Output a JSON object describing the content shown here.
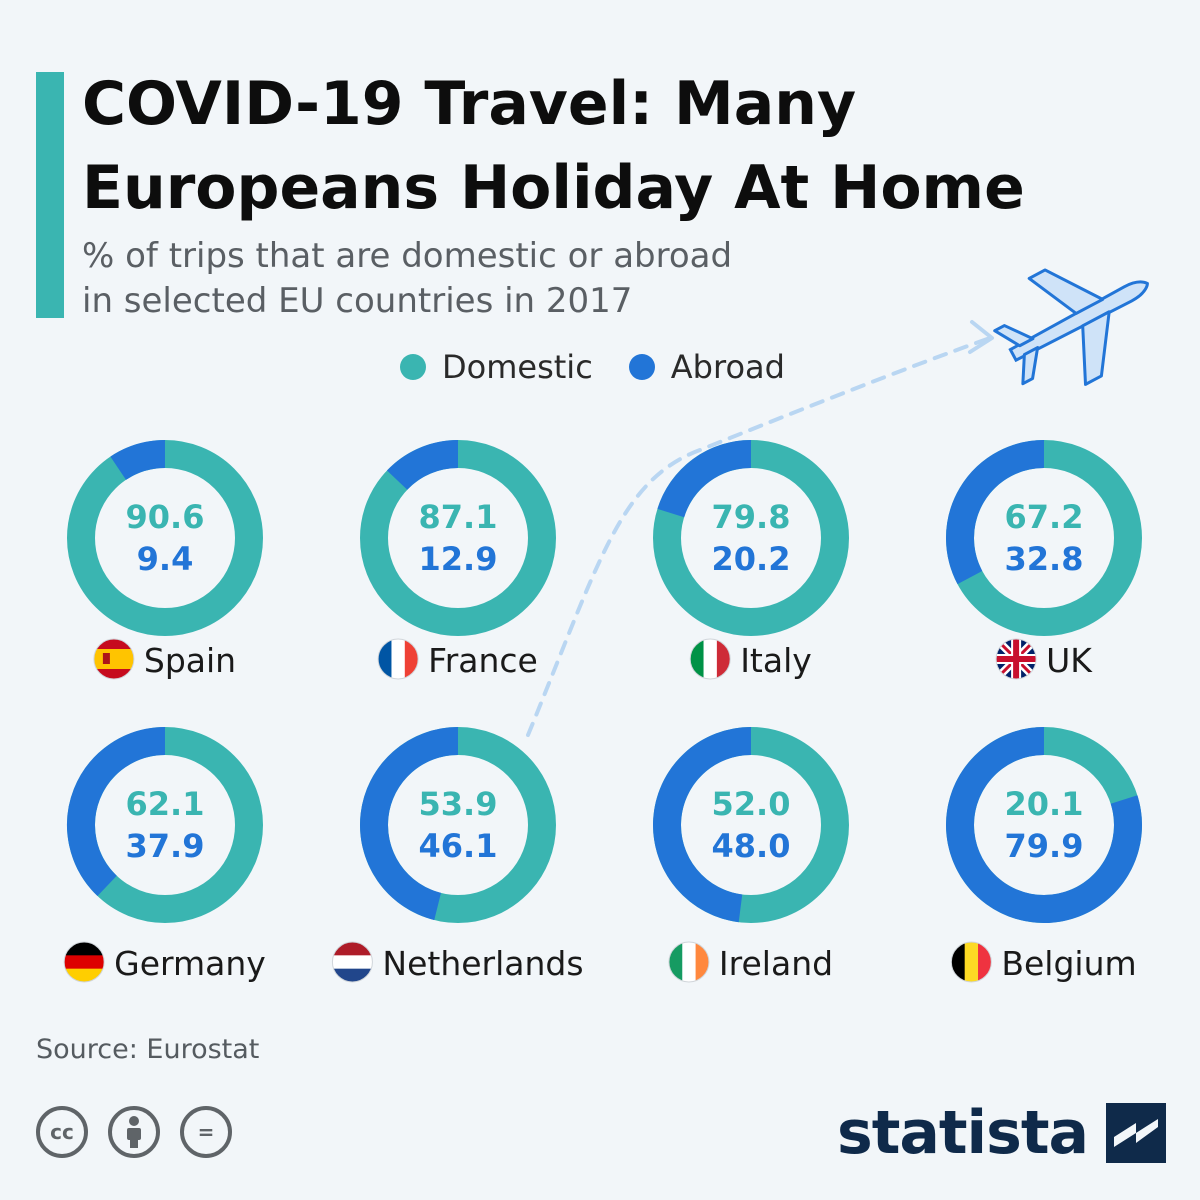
{
  "header": {
    "title": "COVID-19 Travel: Many Europeans Holiday At Home",
    "subtitle_line1": "% of trips that are domestic or abroad",
    "subtitle_line2": "in selected EU countries in 2017"
  },
  "legend": {
    "domestic_label": "Domestic",
    "abroad_label": "Abroad"
  },
  "colors": {
    "domestic": "#3ab5b1",
    "abroad": "#2275d7",
    "accent": "#3ab5b1",
    "plane": "#bcd8f5",
    "track": "#b9d6f2"
  },
  "chart_data": {
    "type": "donut",
    "series": [
      {
        "name": "Domestic",
        "color": "#3ab5b1"
      },
      {
        "name": "Abroad",
        "color": "#2275d7"
      }
    ],
    "categories": [
      "Spain",
      "France",
      "Italy",
      "UK",
      "Germany",
      "Netherlands",
      "Ireland",
      "Belgium"
    ],
    "items": [
      {
        "country": "Spain",
        "flag": "es",
        "domestic": "90.6",
        "abroad": "9.4"
      },
      {
        "country": "France",
        "flag": "fr",
        "domestic": "87.1",
        "abroad": "12.9"
      },
      {
        "country": "Italy",
        "flag": "it",
        "domestic": "79.8",
        "abroad": "20.2"
      },
      {
        "country": "UK",
        "flag": "uk",
        "domestic": "67.2",
        "abroad": "32.8"
      },
      {
        "country": "Germany",
        "flag": "de",
        "domestic": "62.1",
        "abroad": "37.9"
      },
      {
        "country": "Netherlands",
        "flag": "nl",
        "domestic": "53.9",
        "abroad": "46.1"
      },
      {
        "country": "Ireland",
        "flag": "ie",
        "domestic": "52.0",
        "abroad": "48.0"
      },
      {
        "country": "Belgium",
        "flag": "be",
        "domestic": "20.1",
        "abroad": "79.9"
      }
    ]
  },
  "footer": {
    "source": "Source: Eurostat",
    "brand": "statista",
    "license_icons": [
      "cc-icon",
      "attribution-icon",
      "no-derivatives-icon"
    ],
    "cc_text": "cc",
    "nd_text": "="
  }
}
